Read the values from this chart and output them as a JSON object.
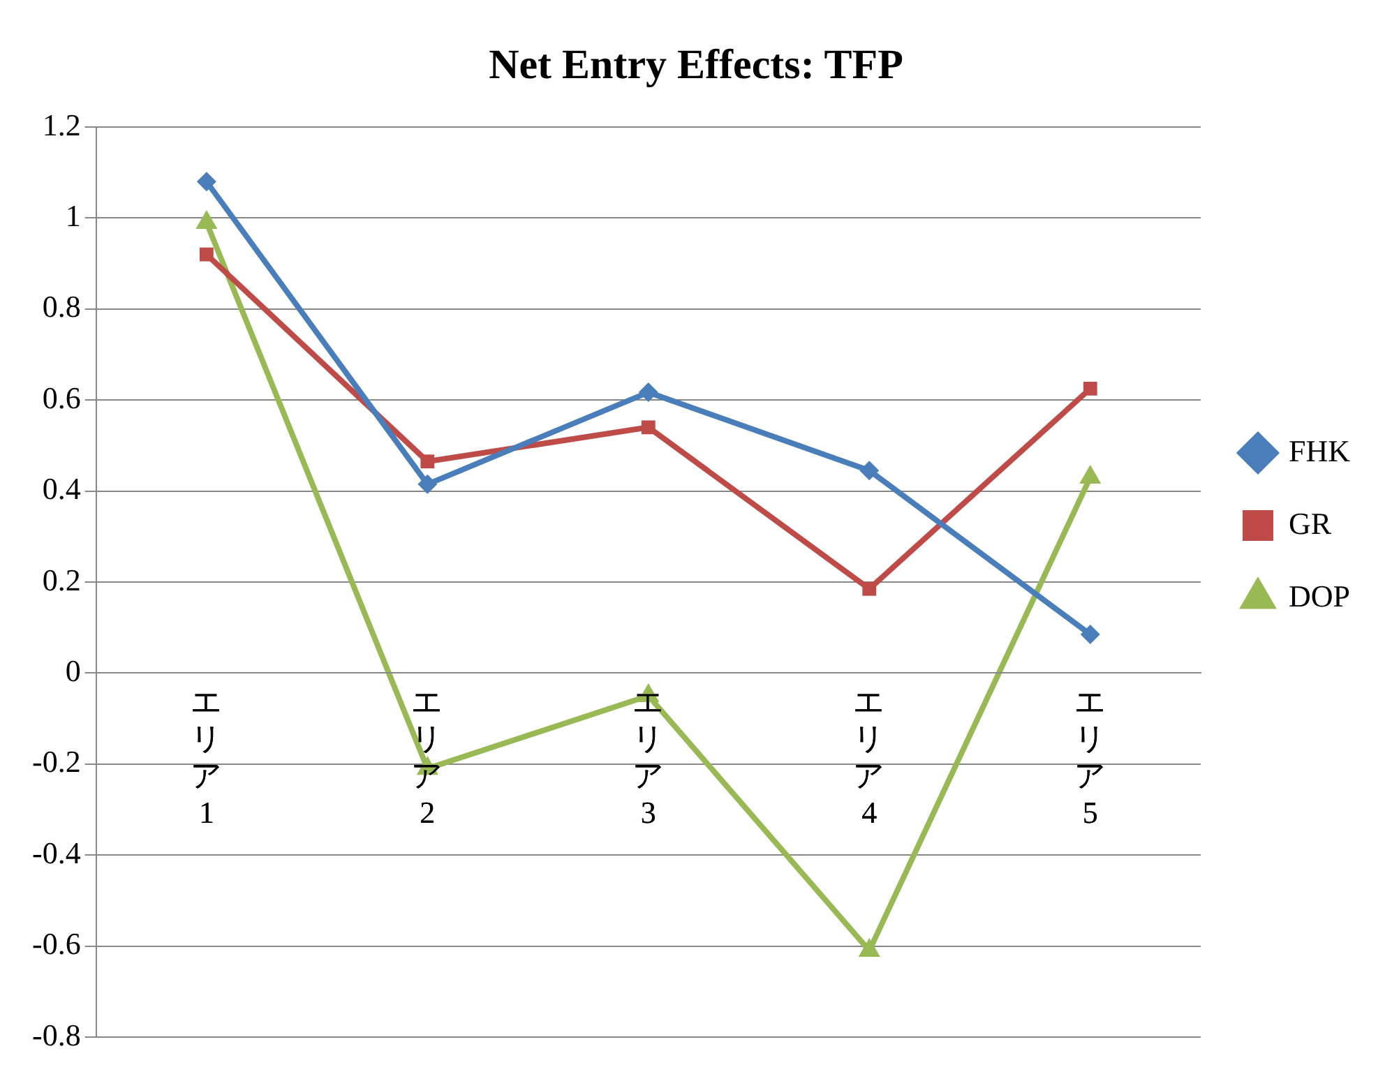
{
  "chart_data": {
    "type": "line",
    "title": "Net Entry Effects: TFP",
    "categories": [
      "エリア1",
      "エリア2",
      "エリア3",
      "エリア4",
      "エリア5"
    ],
    "series": [
      {
        "name": "FHK",
        "color": "#4a7ebb",
        "marker": "diamond",
        "values": [
          1.08,
          0.415,
          0.617,
          0.445,
          0.085
        ]
      },
      {
        "name": "GR",
        "color": "#be4b48",
        "marker": "square",
        "values": [
          0.92,
          0.465,
          0.54,
          0.185,
          0.625
        ]
      },
      {
        "name": "DOP",
        "color": "#98b954",
        "marker": "triangle",
        "values": [
          0.99,
          -0.21,
          -0.05,
          -0.61,
          0.43
        ]
      }
    ],
    "ylim": [
      -0.8,
      1.2
    ],
    "yticks": [
      -0.8,
      -0.6,
      -0.4,
      -0.2,
      0,
      0.2,
      0.4,
      0.6,
      0.8,
      1,
      1.2
    ],
    "grid": "y",
    "legend": "right",
    "line_style": "solid"
  }
}
